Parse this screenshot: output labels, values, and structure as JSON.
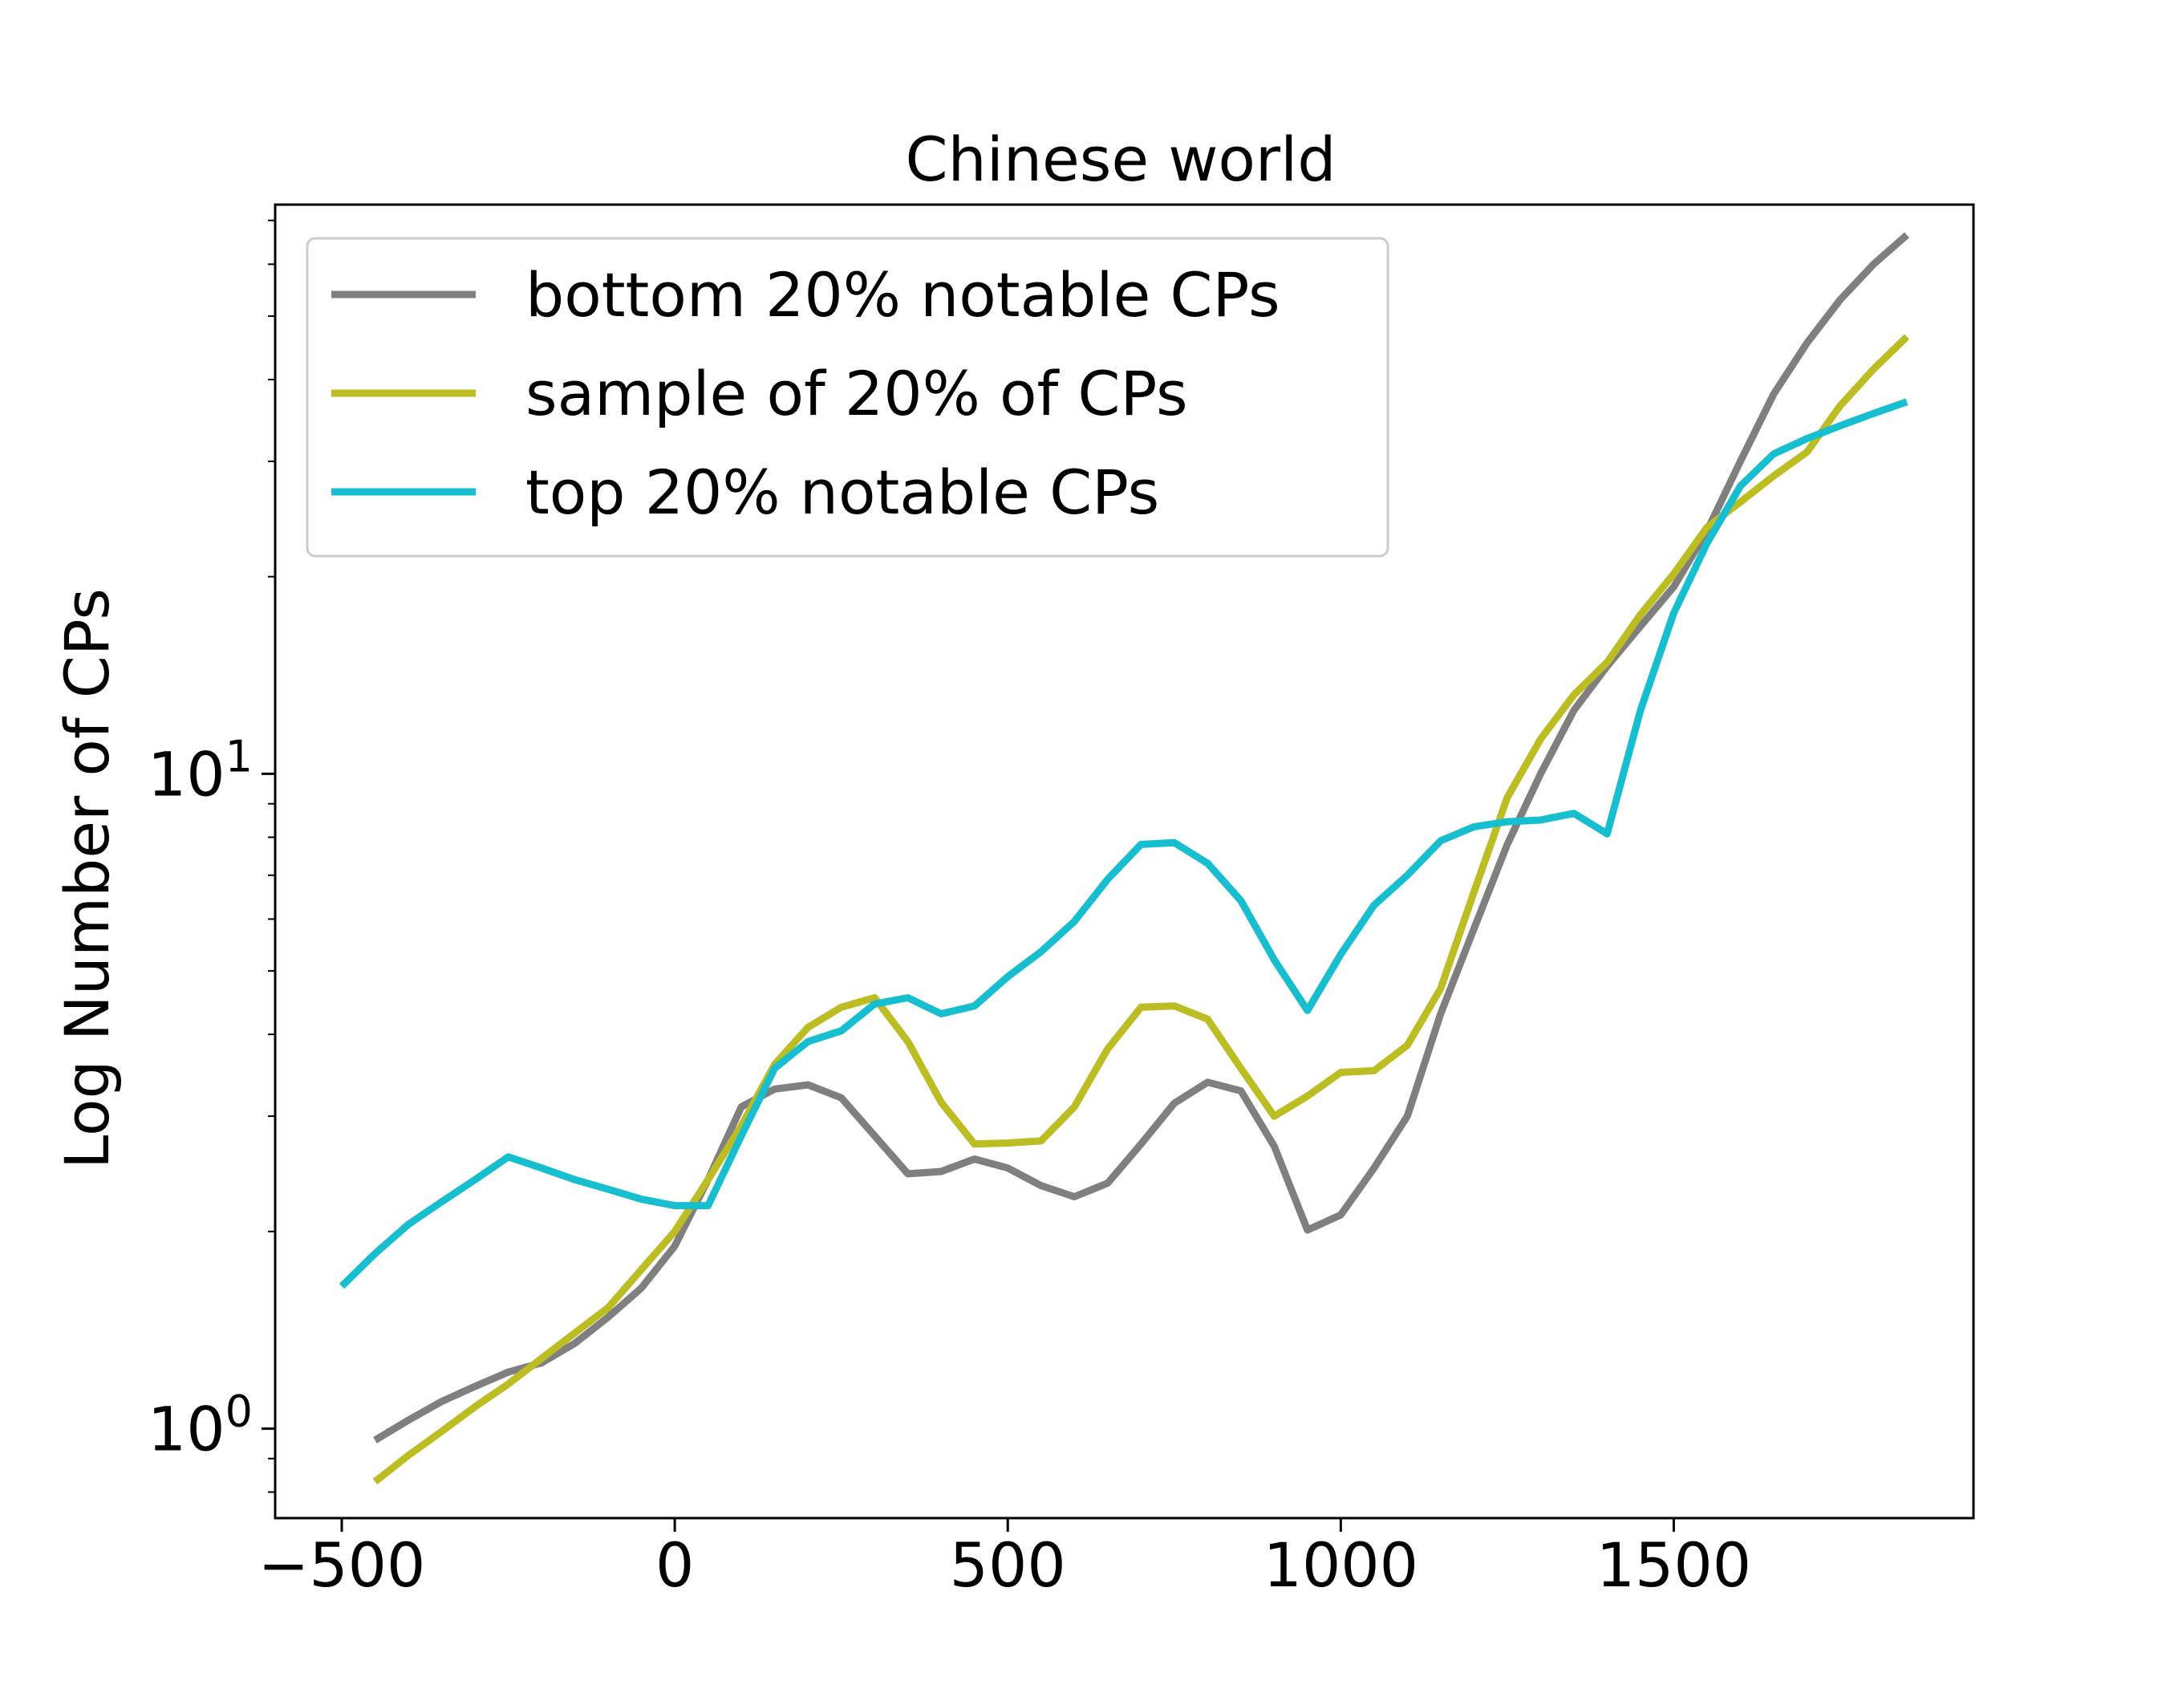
{
  "chart_data": {
    "type": "line",
    "title": "Chinese world",
    "xlabel": "",
    "ylabel": "Log Number of CPs",
    "yscale": "log",
    "xlim": [
      -600,
      1950
    ],
    "ylim": [
      0.73,
      74
    ],
    "grid": false,
    "legend_position": "top-left",
    "x_ticks": [
      {
        "value": -500,
        "label": "−500"
      },
      {
        "value": 0,
        "label": "0"
      },
      {
        "value": 500,
        "label": "500"
      },
      {
        "value": 1000,
        "label": "1000"
      },
      {
        "value": 1500,
        "label": "1500"
      }
    ],
    "y_ticks": [
      {
        "value": 1,
        "base": "10",
        "exp": "0"
      },
      {
        "value": 10,
        "base": "10",
        "exp": "1"
      }
    ],
    "series": [
      {
        "name": "bottom 20% notable CPs",
        "color": "#7f7f7f",
        "x": [
          -450,
          -400,
          -350,
          -300,
          -250,
          -200,
          -150,
          -100,
          -50,
          0,
          50,
          100,
          150,
          200,
          250,
          300,
          350,
          400,
          450,
          500,
          550,
          600,
          650,
          700,
          750,
          800,
          850,
          900,
          950,
          1000,
          1050,
          1100,
          1150,
          1200,
          1250,
          1300,
          1350,
          1400,
          1450,
          1500,
          1550,
          1600,
          1650,
          1700,
          1750,
          1800,
          1850
        ],
        "y": [
          0.96,
          1.03,
          1.1,
          1.16,
          1.22,
          1.26,
          1.35,
          1.48,
          1.64,
          1.9,
          2.4,
          3.1,
          3.3,
          3.35,
          3.2,
          2.8,
          2.45,
          2.47,
          2.58,
          2.5,
          2.35,
          2.26,
          2.37,
          2.72,
          3.14,
          3.38,
          3.28,
          2.7,
          2.01,
          2.12,
          2.5,
          3.0,
          4.3,
          5.8,
          7.8,
          10.0,
          12.5,
          14.6,
          16.8,
          19.3,
          23.5,
          30.0,
          38.0,
          45.5,
          53.0,
          60.0,
          66.5
        ]
      },
      {
        "name": "sample of 20% of CPs",
        "color": "#bcbd22",
        "x": [
          -450,
          -400,
          -350,
          -300,
          -250,
          -200,
          -150,
          -100,
          -50,
          0,
          50,
          100,
          150,
          200,
          250,
          300,
          350,
          400,
          450,
          500,
          550,
          600,
          650,
          700,
          750,
          800,
          850,
          900,
          950,
          1000,
          1050,
          1100,
          1150,
          1200,
          1250,
          1300,
          1350,
          1400,
          1450,
          1500,
          1550,
          1600,
          1650,
          1700,
          1750,
          1800,
          1850
        ],
        "y": [
          0.83,
          0.91,
          0.99,
          1.08,
          1.17,
          1.28,
          1.4,
          1.53,
          1.75,
          2.0,
          2.4,
          2.9,
          3.6,
          4.1,
          4.4,
          4.55,
          3.9,
          3.15,
          2.72,
          2.73,
          2.75,
          3.1,
          3.8,
          4.4,
          4.42,
          4.22,
          3.55,
          3.0,
          3.22,
          3.5,
          3.52,
          3.85,
          4.7,
          6.6,
          9.2,
          11.3,
          13.2,
          14.8,
          17.5,
          20.2,
          23.8,
          26.0,
          28.5,
          31.0,
          36.5,
          41.5,
          46.5
        ]
      },
      {
        "name": "top 20% notable CPs",
        "color": "#17becf",
        "x": [
          -500,
          -450,
          -400,
          -350,
          -300,
          -250,
          -200,
          -150,
          -100,
          -50,
          0,
          50,
          100,
          150,
          200,
          250,
          300,
          350,
          400,
          450,
          500,
          550,
          600,
          650,
          700,
          750,
          800,
          850,
          900,
          950,
          1000,
          1050,
          1100,
          1150,
          1200,
          1250,
          1300,
          1350,
          1400,
          1450,
          1500,
          1550,
          1600,
          1650,
          1700,
          1750,
          1800,
          1850
        ],
        "y": [
          1.65,
          1.85,
          2.05,
          2.22,
          2.4,
          2.6,
          2.5,
          2.4,
          2.32,
          2.24,
          2.19,
          2.19,
          2.8,
          3.55,
          3.9,
          4.05,
          4.45,
          4.55,
          4.3,
          4.42,
          4.9,
          5.35,
          5.95,
          6.9,
          7.8,
          7.85,
          7.3,
          6.4,
          5.2,
          4.35,
          5.3,
          6.3,
          7.0,
          7.9,
          8.3,
          8.45,
          8.5,
          8.7,
          8.1,
          12.5,
          17.6,
          22.5,
          27.5,
          30.8,
          32.5,
          34.0,
          35.5,
          37.0
        ]
      }
    ]
  }
}
